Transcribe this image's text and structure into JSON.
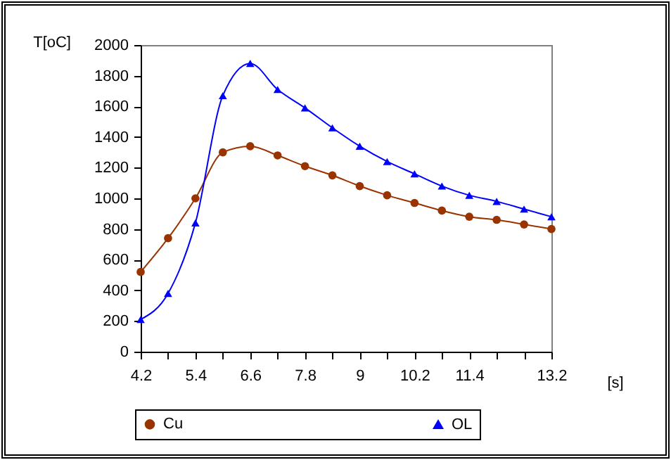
{
  "chart_data": {
    "type": "line",
    "xlabel": "[s]",
    "ylabel": "T[oC]",
    "x": [
      4.2,
      4.8,
      5.4,
      6.0,
      6.6,
      7.2,
      7.8,
      8.4,
      9.0,
      9.6,
      10.2,
      10.8,
      11.4,
      12.0,
      12.6,
      13.2
    ],
    "series": [
      {
        "name": "Cu",
        "color": "#993300",
        "marker": "circle",
        "values": [
          520,
          740,
          1000,
          1300,
          1340,
          1280,
          1210,
          1150,
          1080,
          1020,
          970,
          920,
          880,
          860,
          830,
          800
        ]
      },
      {
        "name": "OL",
        "color": "#0000ff",
        "marker": "triangle",
        "values": [
          210,
          380,
          840,
          1670,
          1880,
          1710,
          1590,
          1460,
          1340,
          1240,
          1160,
          1080,
          1020,
          980,
          930,
          880
        ]
      }
    ],
    "xlim": [
      4.2,
      13.2
    ],
    "xticks": [
      4.2,
      {
        "value": 4.8,
        "label": null
      },
      5.4,
      {
        "value": 6.0,
        "label": null
      },
      6.6,
      {
        "value": 7.2,
        "label": null
      },
      7.8,
      {
        "value": 8.4,
        "label": null
      },
      9,
      {
        "value": 9.6,
        "label": null
      },
      10.2,
      {
        "value": 10.8,
        "label": null
      },
      11.4,
      {
        "value": 12.0,
        "label": null
      },
      {
        "value": 12.6,
        "label": null
      },
      13.2
    ],
    "ylim": [
      0,
      2000
    ],
    "yticks": [
      0,
      200,
      400,
      600,
      800,
      1000,
      1200,
      1400,
      1600,
      1800,
      2000
    ],
    "grid": false,
    "legend": "bottom",
    "line_style": "solid"
  }
}
